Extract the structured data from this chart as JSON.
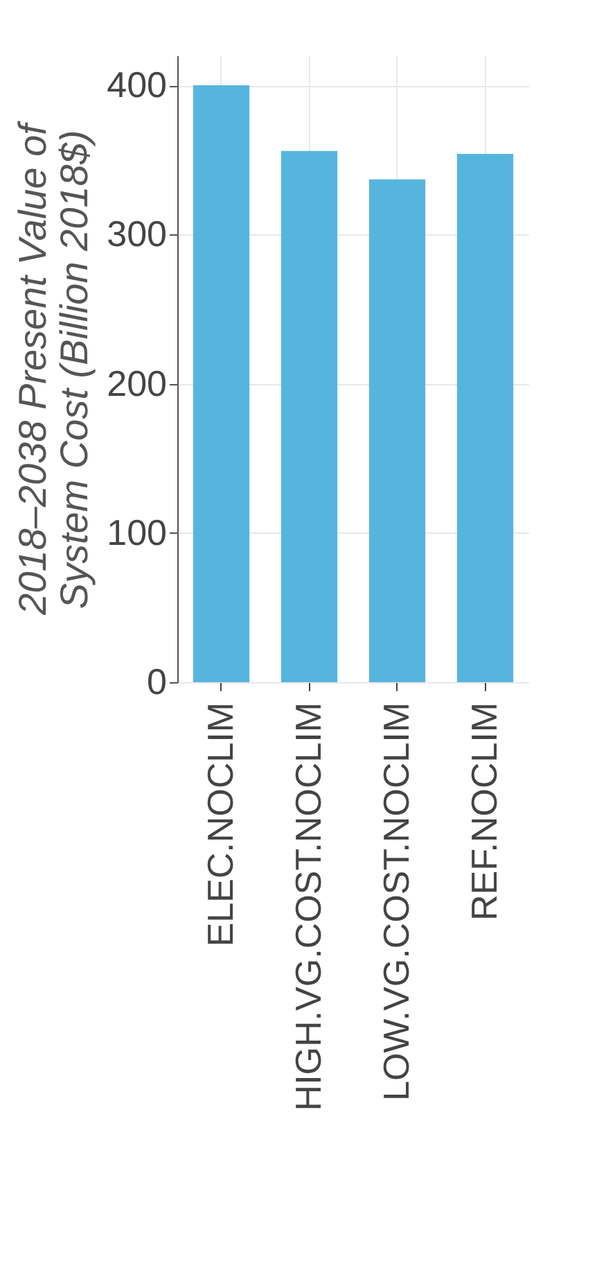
{
  "chart_data": {
    "type": "bar",
    "ylabel": "2018–2038 Present Value of\nSystem Cost (Billion 2018$)",
    "categories": [
      "ELEC.NOCLIM",
      "HIGH.VG.COST.NOCLIM",
      "LOW.VG.COST.NOCLIM",
      "REF.NOCLIM"
    ],
    "values": [
      400,
      356,
      337,
      354
    ],
    "color": "#56b5de",
    "ylim": [
      0,
      420
    ],
    "yticks": [
      0,
      100,
      200,
      300,
      400
    ],
    "grid": true
  }
}
